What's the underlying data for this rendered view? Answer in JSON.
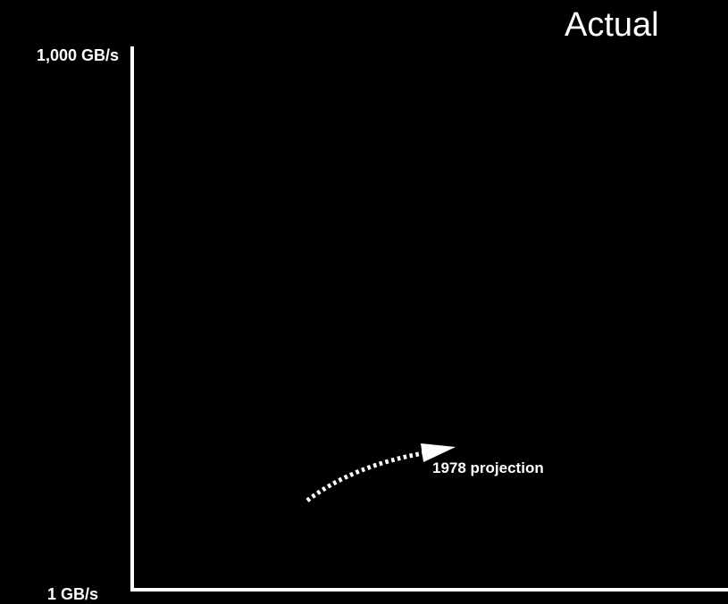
{
  "chart_data": {
    "type": "line",
    "title": "Actual",
    "xlabel": "",
    "ylabel": "",
    "y_scale": "log",
    "ylim": [
      "1 GB/s",
      "1,000 GB/s"
    ],
    "y_tick_labels": [
      "1 GB/s",
      "1,000 GB/s"
    ],
    "grid": false,
    "background_color": "#000000",
    "foreground_color": "#ffffff",
    "series": [],
    "annotations": [
      {
        "text": "1978 projection",
        "style": "dotted arrow",
        "color": "#ffffff"
      }
    ]
  }
}
